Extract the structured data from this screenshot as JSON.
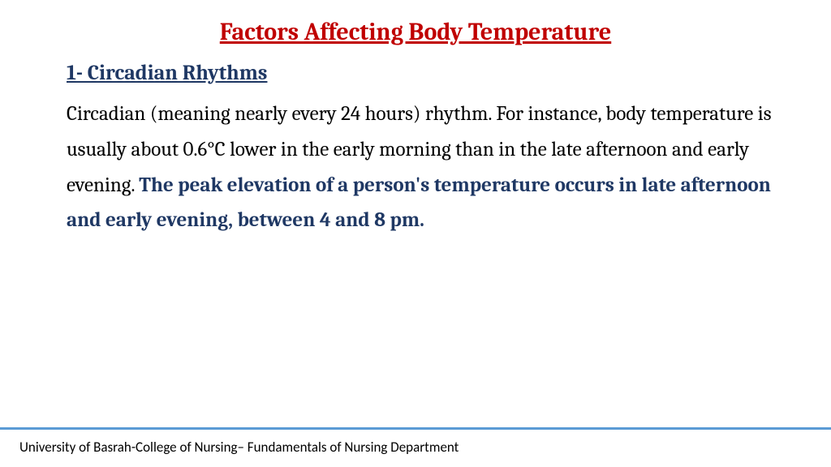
{
  "title": {
    "text": "Factors Affecting Body Temperature",
    "color": "#c00000",
    "fontsize": 30
  },
  "subtitle": {
    "text": "1- Circadian Rhythms",
    "color": "#1f3864",
    "fontsize": 26
  },
  "body": {
    "normal_text": "Circadian (meaning nearly every 24 hours) rhythm. For instance, body temperature is usually about 0.6°C lower in the early morning than in the late afternoon and early evening. ",
    "emphasis_text": "The peak elevation of a person's temperature occurs in late afternoon and early evening, between 4 and 8 pm.",
    "normal_color": "#000000",
    "emphasis_color": "#1f3864",
    "fontsize": 25
  },
  "footer": {
    "divider_color": "#5b9bd5",
    "text": "University of Basrah-College of Nursing– Fundamentals of Nursing Department",
    "fontsize": 17
  },
  "background_color": "#ffffff"
}
